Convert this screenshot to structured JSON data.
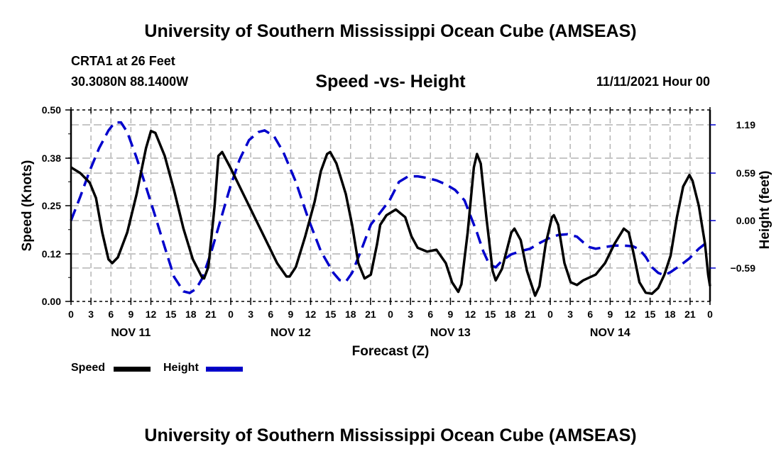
{
  "header": {
    "main_title": "University of Southern Mississippi Ocean Cube (AMSEAS)",
    "station": "CRTA1 at 26 Feet",
    "coords": "30.3080N  88.1400W",
    "subtitle": "Speed -vs- Height",
    "date": "11/11/2021 Hour 00"
  },
  "footer": {
    "title": "University of Southern Mississippi Ocean Cube (AMSEAS)"
  },
  "legend": {
    "speed_label": "Speed",
    "height_label": "Height"
  },
  "colors": {
    "speed": "#000000",
    "height": "#0000cc",
    "grid": "#b4b4b4"
  },
  "chart_data": {
    "type": "line",
    "title": "Speed -vs- Height",
    "xlabel": "Forecast (Z)",
    "ylabel": "Speed (Knots)",
    "y2label": "Height (feet)",
    "x_hours": [
      0,
      3,
      6,
      9,
      12,
      15,
      18,
      21,
      24,
      27,
      30,
      33,
      36,
      39,
      42,
      45,
      48,
      51,
      54,
      57,
      60,
      63,
      66,
      69,
      72,
      75,
      78,
      81,
      84,
      87,
      90,
      93,
      96
    ],
    "x_tick_labels": [
      "0",
      "3",
      "6",
      "9",
      "12",
      "15",
      "18",
      "21",
      "0",
      "3",
      "6",
      "9",
      "12",
      "15",
      "18",
      "21",
      "0",
      "3",
      "6",
      "9",
      "12",
      "15",
      "18",
      "21",
      "0",
      "3",
      "6",
      "9",
      "12",
      "15",
      "18",
      "21",
      "0"
    ],
    "date_labels": [
      {
        "label": "NOV 11",
        "at_hour": 9
      },
      {
        "label": "NOV 12",
        "at_hour": 33
      },
      {
        "label": "NOV 13",
        "at_hour": 57
      },
      {
        "label": "NOV 14",
        "at_hour": 81
      }
    ],
    "ylim": [
      0,
      0.5
    ],
    "y_ticks": [
      {
        "label": "0.50",
        "value": 0.5
      },
      {
        "label": "0.38",
        "value": 0.374
      },
      {
        "label": "0.25",
        "value": 0.25
      },
      {
        "label": "0.12",
        "value": 0.124
      },
      {
        "label": "0.00",
        "value": 0.0
      }
    ],
    "y2lim": [
      -1.0,
      1.38
    ],
    "y2_ticks": [
      {
        "label": "1.19",
        "value": 1.19
      },
      {
        "label": "0.59",
        "value": 0.59
      },
      {
        "label": "0.00",
        "value": 0.0
      },
      {
        "label": "-0.59",
        "value": -0.59
      }
    ],
    "grid": true,
    "legend_position": "bottom-left",
    "series": [
      {
        "name": "Speed",
        "axis": "left",
        "style": "solid",
        "points": [
          [
            0,
            0.35
          ],
          [
            1.5,
            0.335
          ],
          [
            3,
            0.31
          ],
          [
            4,
            0.27
          ],
          [
            5,
            0.18
          ],
          [
            6,
            0.11
          ],
          [
            6.6,
            0.1
          ],
          [
            7.5,
            0.115
          ],
          [
            9,
            0.18
          ],
          [
            10.5,
            0.28
          ],
          [
            12,
            0.4
          ],
          [
            12.8,
            0.445
          ],
          [
            13.5,
            0.44
          ],
          [
            15,
            0.38
          ],
          [
            16.5,
            0.29
          ],
          [
            18,
            0.19
          ],
          [
            19.5,
            0.11
          ],
          [
            21,
            0.062
          ],
          [
            21.3,
            0.06
          ],
          [
            22,
            0.09
          ],
          [
            23,
            0.25
          ],
          [
            23.6,
            0.38
          ],
          [
            24.2,
            0.39
          ],
          [
            25.5,
            0.35
          ],
          [
            27,
            0.3
          ],
          [
            28.5,
            0.25
          ],
          [
            30,
            0.2
          ],
          [
            31.5,
            0.15
          ],
          [
            33,
            0.1
          ],
          [
            34.5,
            0.065
          ],
          [
            35,
            0.065
          ],
          [
            36,
            0.09
          ],
          [
            37.5,
            0.17
          ],
          [
            39,
            0.26
          ],
          [
            40,
            0.34
          ],
          [
            41,
            0.385
          ],
          [
            41.5,
            0.39
          ],
          [
            42.5,
            0.36
          ],
          [
            44,
            0.28
          ],
          [
            45,
            0.2
          ],
          [
            46,
            0.1
          ],
          [
            47,
            0.06
          ],
          [
            48,
            0.07
          ],
          [
            49,
            0.15
          ],
          [
            49.5,
            0.2
          ],
          [
            50.5,
            0.225
          ],
          [
            52,
            0.24
          ],
          [
            53.5,
            0.22
          ],
          [
            54.5,
            0.17
          ],
          [
            55.5,
            0.14
          ],
          [
            57,
            0.13
          ],
          [
            58.5,
            0.135
          ],
          [
            60,
            0.1
          ],
          [
            61,
            0.05
          ],
          [
            62,
            0.025
          ],
          [
            62.5,
            0.045
          ],
          [
            63.5,
            0.18
          ],
          [
            64.5,
            0.35
          ],
          [
            65,
            0.385
          ],
          [
            65.6,
            0.36
          ],
          [
            66.5,
            0.22
          ],
          [
            67.5,
            0.08
          ],
          [
            68,
            0.055
          ],
          [
            69,
            0.085
          ],
          [
            70.5,
            0.18
          ],
          [
            71,
            0.19
          ],
          [
            72,
            0.16
          ],
          [
            73,
            0.08
          ],
          [
            74,
            0.03
          ],
          [
            74.3,
            0.015
          ],
          [
            75,
            0.04
          ],
          [
            76,
            0.15
          ],
          [
            77,
            0.22
          ],
          [
            77.3,
            0.225
          ],
          [
            78,
            0.2
          ],
          [
            79,
            0.1
          ],
          [
            80,
            0.05
          ],
          [
            81,
            0.043
          ],
          [
            82,
            0.055
          ],
          [
            84,
            0.07
          ],
          [
            85.5,
            0.1
          ],
          [
            87,
            0.15
          ],
          [
            88.5,
            0.19
          ],
          [
            89.3,
            0.18
          ],
          [
            90,
            0.13
          ],
          [
            91,
            0.05
          ],
          [
            92,
            0.023
          ],
          [
            93,
            0.02
          ],
          [
            94,
            0.035
          ],
          [
            95,
            0.07
          ],
          [
            96,
            0.12
          ],
          [
            97,
            0.22
          ],
          [
            98,
            0.3
          ],
          [
            99,
            0.33
          ],
          [
            99.5,
            0.315
          ],
          [
            100.5,
            0.25
          ],
          [
            101.5,
            0.15
          ],
          [
            102,
            0.07
          ],
          [
            102.3,
            0.04
          ]
        ]
      },
      {
        "name": "Height",
        "axis": "right",
        "style": "dashed",
        "points": [
          [
            0,
            0.0
          ],
          [
            1.5,
            0.3
          ],
          [
            3,
            0.62
          ],
          [
            4.5,
            0.9
          ],
          [
            6,
            1.12
          ],
          [
            7,
            1.22
          ],
          [
            8,
            1.22
          ],
          [
            9,
            1.1
          ],
          [
            10.5,
            0.78
          ],
          [
            12,
            0.42
          ],
          [
            13.5,
            0.05
          ],
          [
            15,
            -0.33
          ],
          [
            16.5,
            -0.7
          ],
          [
            18,
            -0.88
          ],
          [
            19,
            -0.9
          ],
          [
            20,
            -0.85
          ],
          [
            21,
            -0.72
          ],
          [
            22.5,
            -0.38
          ],
          [
            24,
            0.02
          ],
          [
            25.5,
            0.42
          ],
          [
            27,
            0.76
          ],
          [
            28.5,
            1.0
          ],
          [
            30,
            1.1
          ],
          [
            31,
            1.12
          ],
          [
            32.5,
            1.05
          ],
          [
            34,
            0.85
          ],
          [
            36,
            0.48
          ],
          [
            38,
            0.02
          ],
          [
            40,
            -0.38
          ],
          [
            42,
            -0.65
          ],
          [
            43,
            -0.74
          ],
          [
            44,
            -0.76
          ],
          [
            45,
            -0.65
          ],
          [
            46.5,
            -0.36
          ],
          [
            48,
            -0.05
          ],
          [
            49.5,
            0.1
          ],
          [
            51,
            0.25
          ],
          [
            52.5,
            0.48
          ],
          [
            54,
            0.55
          ],
          [
            55.5,
            0.55
          ],
          [
            57,
            0.53
          ],
          [
            58.5,
            0.5
          ],
          [
            60,
            0.45
          ],
          [
            61.5,
            0.38
          ],
          [
            63,
            0.25
          ],
          [
            64,
            0.05
          ],
          [
            65,
            -0.15
          ],
          [
            66,
            -0.38
          ],
          [
            67,
            -0.55
          ],
          [
            68,
            -0.58
          ],
          [
            69,
            -0.5
          ],
          [
            70.5,
            -0.42
          ],
          [
            72,
            -0.38
          ],
          [
            73.5,
            -0.35
          ],
          [
            75,
            -0.28
          ],
          [
            76.5,
            -0.22
          ],
          [
            78,
            -0.18
          ],
          [
            79.5,
            -0.17
          ],
          [
            81,
            -0.2
          ],
          [
            82,
            -0.27
          ],
          [
            83,
            -0.33
          ],
          [
            84,
            -0.35
          ],
          [
            85.5,
            -0.33
          ],
          [
            87,
            -0.31
          ],
          [
            88.5,
            -0.31
          ],
          [
            90,
            -0.32
          ],
          [
            91,
            -0.36
          ],
          [
            92,
            -0.45
          ],
          [
            93,
            -0.58
          ],
          [
            94,
            -0.65
          ],
          [
            95,
            -0.68
          ],
          [
            96,
            -0.64
          ],
          [
            97.5,
            -0.56
          ],
          [
            99,
            -0.47
          ],
          [
            100.5,
            -0.35
          ],
          [
            102.3,
            -0.24
          ]
        ]
      }
    ]
  }
}
